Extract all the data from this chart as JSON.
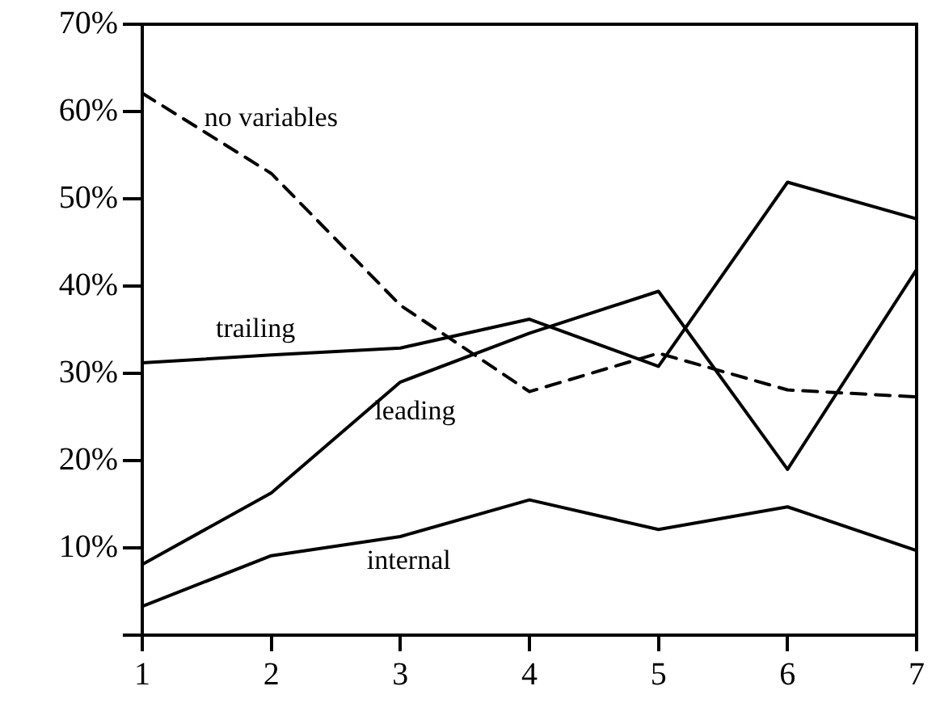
{
  "chart_data": {
    "type": "line",
    "x": [
      1,
      2,
      3,
      4,
      5,
      6,
      7
    ],
    "xlim": [
      1,
      7
    ],
    "xticks": [
      1,
      2,
      3,
      4,
      5,
      6,
      7
    ],
    "ylim": [
      0,
      70
    ],
    "yticks": [
      {
        "value": 0,
        "label": null
      },
      {
        "value": 10,
        "label": "10%"
      },
      {
        "value": 20,
        "label": "20%"
      },
      {
        "value": 30,
        "label": "30%"
      },
      {
        "value": 40,
        "label": "40%"
      },
      {
        "value": 50,
        "label": "50%"
      },
      {
        "value": 60,
        "label": "60%"
      },
      {
        "value": 70,
        "label": "70%"
      }
    ],
    "grid": false,
    "legend": false,
    "marker": "none",
    "series": [
      {
        "name": "no variables",
        "color": "#000000",
        "line_style": "dashed",
        "values": [
          62.1,
          52.9,
          37.8,
          27.9,
          32.3,
          28.1,
          27.3
        ]
      },
      {
        "name": "trailing",
        "color": "#000000",
        "line_style": "solid",
        "values": [
          31.2,
          32.1,
          32.9,
          36.2,
          30.8,
          51.9,
          47.7
        ]
      },
      {
        "name": "leading",
        "color": "#000000",
        "line_style": "solid",
        "values": [
          8.1,
          16.3,
          29,
          34.6,
          39.4,
          19,
          41.9
        ]
      },
      {
        "name": "internal",
        "color": "#000000",
        "line_style": "solid",
        "values": [
          3.3,
          9.1,
          11.3,
          15.5,
          12.1,
          14.7,
          9.7
        ]
      }
    ]
  }
}
